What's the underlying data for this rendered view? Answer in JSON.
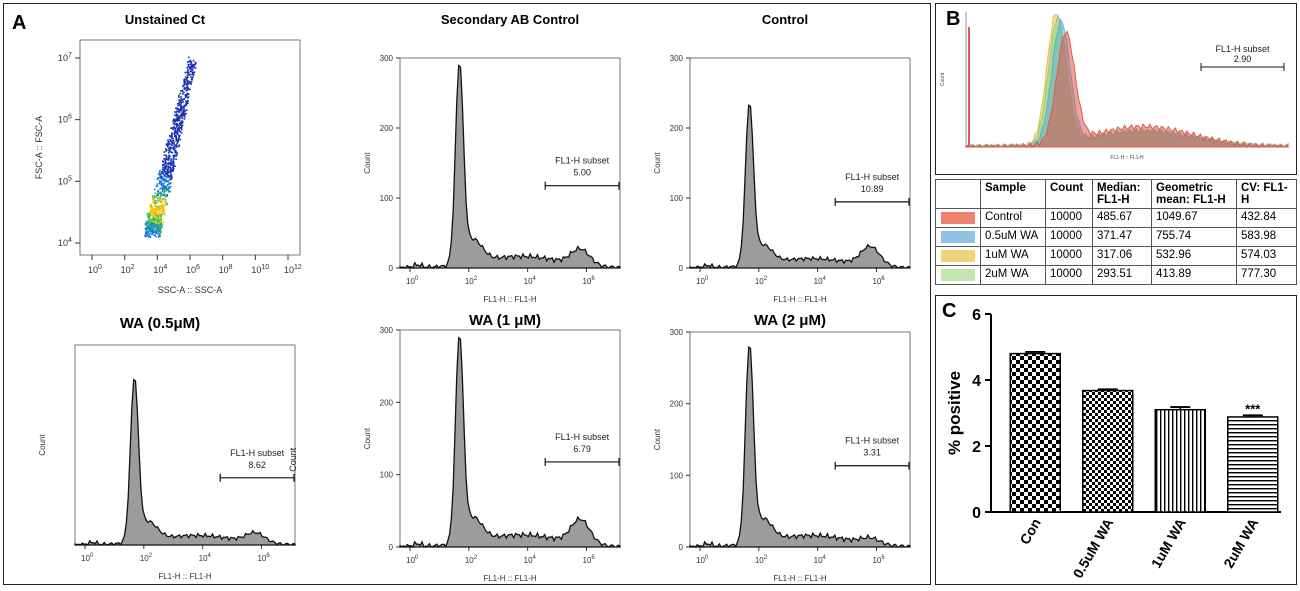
{
  "panel_a": {
    "letter": "A",
    "scatter": {
      "title": "Unstained Ct",
      "xlabel": "SSC-A :: SSC-A",
      "ylabel": "FSC-A :: FSC-A",
      "x_ticks": [
        "0",
        "2",
        "4",
        "6",
        "8",
        "10",
        "12"
      ],
      "y_ticks": [
        "4",
        "5",
        "6",
        "7"
      ]
    },
    "histograms": [
      {
        "title": "Secondary AB Control",
        "gate_label": "FL1-H subset",
        "gate_value": "5.00",
        "xlabel": "FL1-H :: FL1-H",
        "ylabel": "Count",
        "y_ticks": [
          "0",
          "100",
          "200",
          "300"
        ],
        "x_ticks": [
          "0",
          "2",
          "4",
          "6"
        ],
        "peak": 280
      },
      {
        "title": "Control",
        "gate_label": "FL1-H subset",
        "gate_value": "10.89",
        "xlabel": "FL1-H :: FL1-H",
        "ylabel": "Count",
        "y_ticks": [
          "0",
          "100",
          "200",
          "300"
        ],
        "x_ticks": [
          "0",
          "2",
          "4",
          "6"
        ],
        "peak": 225
      },
      {
        "title": "WA (0.5μM)",
        "gate_label": "FL1-H subset",
        "gate_value": "8.62",
        "gate_extra": "Count",
        "xlabel": "FL1-H :: FL1-H",
        "ylabel": "Count",
        "y_ticks": [],
        "x_ticks": [
          "0",
          "2",
          "4",
          "6"
        ],
        "peak": 240
      },
      {
        "title": "WA (1 μM)",
        "gate_label": "FL1-H subset",
        "gate_value": "6.79",
        "xlabel": "FL1-H :: FL1-H",
        "ylabel": "Count",
        "y_ticks": [
          "0",
          "100",
          "200",
          "300"
        ],
        "x_ticks": [
          "0",
          "2",
          "4",
          "6"
        ],
        "peak": 280
      },
      {
        "title": "WA (2 μM)",
        "gate_label": "FL1-H subset",
        "gate_value": "3.31",
        "xlabel": "FL1-H :: FL1-H",
        "ylabel": "Count",
        "y_ticks": [
          "0",
          "100",
          "200",
          "300"
        ],
        "x_ticks": [
          "0",
          "2",
          "4",
          "6"
        ],
        "peak": 270
      }
    ]
  },
  "panel_b": {
    "letter": "B",
    "gate_label": "FL1-H subset",
    "gate_value": "2.90",
    "xlabel": "FL1-H :: FL1-H",
    "ylabel": "Count",
    "table": {
      "headers": [
        "",
        "Sample",
        "Count",
        "Median: FL1-H",
        "Geometric mean: FL1-H",
        "CV: FL1-H"
      ],
      "rows": [
        {
          "color": "#f08070",
          "sample": "Control",
          "count": "10000",
          "median": "485.67",
          "geomean": "1049.67",
          "cv": "432.84"
        },
        {
          "color": "#8ec3e6",
          "sample": "0.5uM WA",
          "count": "10000",
          "median": "371.47",
          "geomean": "755.74",
          "cv": "583.98"
        },
        {
          "color": "#f2d27a",
          "sample": "1uM WA",
          "count": "10000",
          "median": "317.06",
          "geomean": "532.96",
          "cv": "574.03"
        },
        {
          "color": "#c6e6b0",
          "sample": "2uM WA",
          "count": "10000",
          "median": "293.51",
          "geomean": "413.89",
          "cv": "777.30"
        }
      ]
    }
  },
  "panel_c": {
    "letter": "C",
    "chart_data": {
      "type": "bar",
      "categories": [
        "Con",
        "0.5uM WA",
        "1uM WA",
        "2uM WA"
      ],
      "values": [
        4.8,
        3.68,
        3.1,
        2.88
      ],
      "errors": [
        0.05,
        0.04,
        0.08,
        0.05
      ],
      "annotations": [
        "",
        "",
        "",
        "***"
      ],
      "ylabel": "% positive",
      "ylim": [
        0,
        6
      ],
      "y_ticks": [
        "0",
        "2",
        "4",
        "6"
      ]
    }
  },
  "colors": {
    "hist_fill": "#9c9c9c",
    "control": "#e05a4a",
    "wa05": "#54b4d8",
    "wa1": "#e8c04a",
    "wa2": "#8fd27a"
  }
}
